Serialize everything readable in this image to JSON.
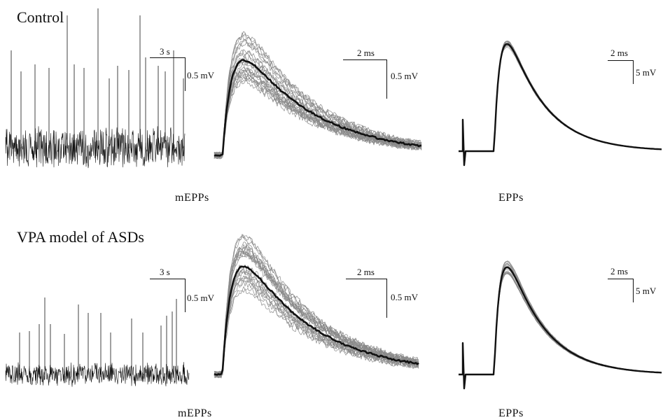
{
  "sections": [
    {
      "title": "Control",
      "raw_trace": {
        "scale_time": "3 s",
        "scale_amp": "0.5 mV"
      },
      "mepp": {
        "scale_time": "2 ms",
        "scale_amp": "0.5 mV",
        "caption": "mEPPs"
      },
      "epp": {
        "scale_time": "2 ms",
        "scale_amp": "5 mV",
        "caption": "EPPs"
      }
    },
    {
      "title": "VPA model of ASDs",
      "raw_trace": {
        "scale_time": "3 s",
        "scale_amp": "0.5 mV"
      },
      "mepp": {
        "scale_time": "2 ms",
        "scale_amp": "0.5 mV",
        "caption": "mEPPs"
      },
      "epp": {
        "scale_time": "2 ms",
        "scale_amp": "5 mV",
        "caption": "EPPs"
      }
    }
  ],
  "colors": {
    "mean_trace": "#111111",
    "individual_traces": "#8a8a8a"
  }
}
